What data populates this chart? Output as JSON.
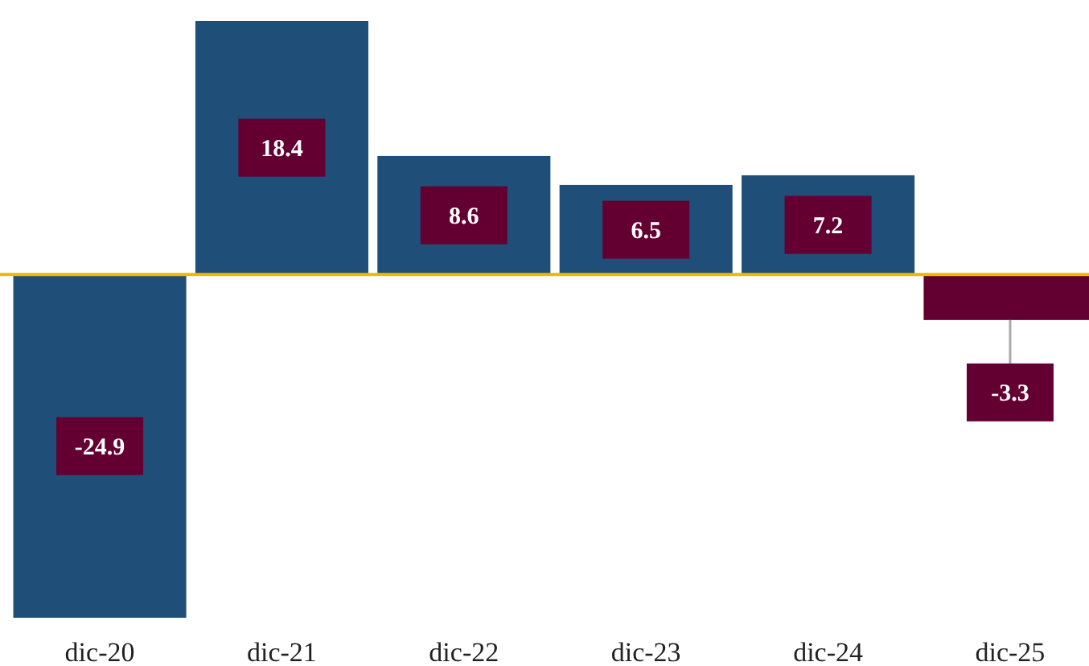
{
  "chart_data": {
    "type": "bar",
    "categories": [
      "dic-20",
      "dic-21",
      "dic-22",
      "dic-23",
      "dic-24",
      "dic-25"
    ],
    "values": [
      -24.9,
      18.4,
      8.6,
      6.5,
      7.2,
      -3.3
    ],
    "colors": [
      "#1f4e79",
      "#1f4e79",
      "#1f4e79",
      "#1f4e79",
      "#1f4e79",
      "#630031"
    ],
    "data_labels": true,
    "ref_lines": [
      {
        "axis": "y",
        "value": 0,
        "color": "#f2b705"
      }
    ]
  }
}
